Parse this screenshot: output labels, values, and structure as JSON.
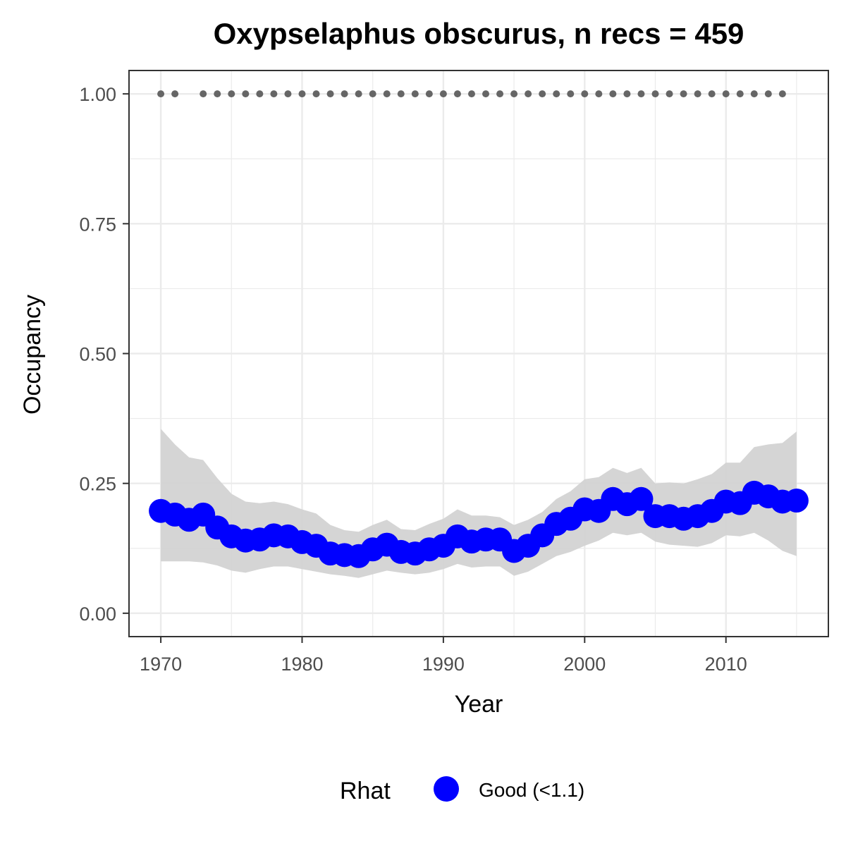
{
  "chart_data": {
    "type": "line",
    "title": "Oxypselaphus obscurus, n recs = 459",
    "xlabel": "Year",
    "ylabel": "Occupancy",
    "xlim": [
      1967.8,
      1917.2
    ],
    "ylim": [
      -0.045,
      1.045
    ],
    "x_ticks": [
      1970,
      1980,
      1990,
      2000,
      2010
    ],
    "x_tick_labels": [
      "1970",
      "1980",
      "1990",
      "2000",
      "2010"
    ],
    "y_ticks": [
      0,
      0.25,
      0.5,
      0.75,
      1.0
    ],
    "y_tick_labels": [
      "0.00",
      "0.25",
      "0.50",
      "0.75",
      "1.00"
    ],
    "grid": true,
    "legend_position": "bottom",
    "colors": {
      "series": "#0000ff",
      "ribbon": "#d3d3d3",
      "detection_points": "#666666",
      "grid": "#ebebeb",
      "panel_border": "#333333"
    },
    "series": [
      {
        "name": "Good (<1.1)",
        "x": [
          1970,
          1971,
          1972,
          1973,
          1974,
          1975,
          1976,
          1977,
          1978,
          1979,
          1980,
          1981,
          1982,
          1983,
          1984,
          1985,
          1986,
          1987,
          1988,
          1989,
          1990,
          1991,
          1992,
          1993,
          1994,
          1995,
          1996,
          1997,
          1998,
          1999,
          2000,
          2001,
          2002,
          2003,
          2004,
          2005,
          2006,
          2007,
          2008,
          2009,
          2010,
          2011,
          2012,
          2013,
          2014,
          2015
        ],
        "y": [
          0.197,
          0.19,
          0.18,
          0.19,
          0.165,
          0.148,
          0.14,
          0.142,
          0.15,
          0.148,
          0.137,
          0.13,
          0.115,
          0.112,
          0.11,
          0.123,
          0.132,
          0.118,
          0.115,
          0.123,
          0.13,
          0.148,
          0.138,
          0.142,
          0.142,
          0.12,
          0.13,
          0.15,
          0.172,
          0.182,
          0.2,
          0.197,
          0.22,
          0.21,
          0.22,
          0.187,
          0.187,
          0.182,
          0.187,
          0.197,
          0.215,
          0.212,
          0.232,
          0.225,
          0.215,
          0.217
        ],
        "lower": [
          0.1,
          0.1,
          0.1,
          0.098,
          0.092,
          0.082,
          0.078,
          0.085,
          0.09,
          0.09,
          0.085,
          0.08,
          0.075,
          0.072,
          0.068,
          0.075,
          0.082,
          0.078,
          0.075,
          0.078,
          0.085,
          0.095,
          0.088,
          0.09,
          0.09,
          0.072,
          0.08,
          0.095,
          0.11,
          0.118,
          0.13,
          0.14,
          0.155,
          0.15,
          0.155,
          0.138,
          0.132,
          0.13,
          0.128,
          0.135,
          0.15,
          0.148,
          0.155,
          0.14,
          0.12,
          0.11
        ],
        "upper": [
          0.355,
          0.325,
          0.3,
          0.295,
          0.26,
          0.23,
          0.215,
          0.212,
          0.215,
          0.21,
          0.2,
          0.192,
          0.17,
          0.16,
          0.157,
          0.17,
          0.18,
          0.162,
          0.16,
          0.172,
          0.182,
          0.2,
          0.188,
          0.188,
          0.185,
          0.17,
          0.18,
          0.195,
          0.22,
          0.235,
          0.258,
          0.262,
          0.28,
          0.27,
          0.28,
          0.25,
          0.252,
          0.25,
          0.258,
          0.268,
          0.29,
          0.29,
          0.32,
          0.325,
          0.328,
          0.35
        ]
      }
    ],
    "detections": {
      "x": [
        1970,
        1971,
        1973,
        1974,
        1975,
        1976,
        1977,
        1978,
        1979,
        1980,
        1981,
        1982,
        1983,
        1984,
        1985,
        1986,
        1987,
        1988,
        1989,
        1990,
        1991,
        1992,
        1993,
        1994,
        1995,
        1996,
        1997,
        1998,
        1999,
        2000,
        2001,
        2002,
        2003,
        2004,
        2005,
        2006,
        2007,
        2008,
        2009,
        2010,
        2011,
        2012,
        2013,
        2014
      ],
      "y": 1.0
    },
    "legend": {
      "title": "Rhat",
      "entries": [
        "Good (<1.1)"
      ]
    }
  }
}
